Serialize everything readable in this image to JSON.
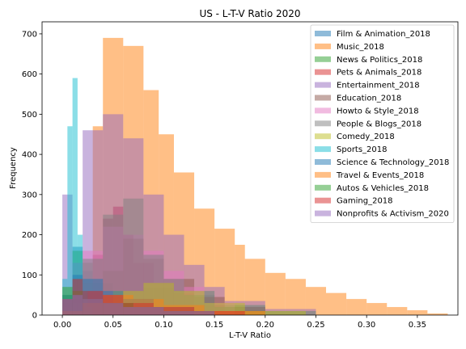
{
  "chart_data": {
    "type": "bar",
    "subtype": "overlaid-histogram",
    "title": "US - L-T-V Ratio 2020",
    "xlabel": "L-T-V Ratio",
    "ylabel": "Frequency",
    "xlim": [
      -0.02,
      0.39
    ],
    "ylim": [
      0,
      730
    ],
    "xticks": [
      0.0,
      0.05,
      0.1,
      0.15,
      0.2,
      0.25,
      0.3,
      0.35
    ],
    "xtick_labels": [
      "0.00",
      "0.05",
      "0.10",
      "0.15",
      "0.20",
      "0.25",
      "0.30",
      "0.35"
    ],
    "yticks": [
      0,
      100,
      200,
      300,
      400,
      500,
      600,
      700
    ],
    "ytick_labels": [
      "0",
      "100",
      "200",
      "300",
      "400",
      "500",
      "600",
      "700"
    ],
    "legend_position": "top-right",
    "bar_opacity": 0.5,
    "series": [
      {
        "name": "Film & Animation_2018",
        "color": "#1f77b4",
        "bins": [
          [
            0.0,
            0.01,
            40
          ],
          [
            0.01,
            0.02,
            170
          ],
          [
            0.02,
            0.03,
            110
          ],
          [
            0.03,
            0.05,
            60
          ],
          [
            0.05,
            0.08,
            30
          ],
          [
            0.08,
            0.12,
            15
          ]
        ]
      },
      {
        "name": "Music_2018",
        "color": "#ff7f0e",
        "bins": [
          [
            0.0,
            0.02,
            20
          ],
          [
            0.02,
            0.03,
            80
          ],
          [
            0.03,
            0.04,
            470
          ],
          [
            0.04,
            0.06,
            690
          ],
          [
            0.06,
            0.08,
            670
          ],
          [
            0.08,
            0.095,
            560
          ],
          [
            0.095,
            0.11,
            450
          ],
          [
            0.11,
            0.13,
            355
          ],
          [
            0.13,
            0.15,
            265
          ],
          [
            0.15,
            0.17,
            215
          ],
          [
            0.17,
            0.18,
            175
          ],
          [
            0.18,
            0.2,
            140
          ],
          [
            0.2,
            0.22,
            105
          ],
          [
            0.22,
            0.24,
            90
          ],
          [
            0.24,
            0.26,
            70
          ],
          [
            0.26,
            0.28,
            55
          ],
          [
            0.28,
            0.3,
            40
          ],
          [
            0.3,
            0.32,
            30
          ],
          [
            0.32,
            0.34,
            20
          ],
          [
            0.34,
            0.36,
            12
          ],
          [
            0.36,
            0.38,
            4
          ]
        ]
      },
      {
        "name": "News & Politics_2018",
        "color": "#2ca02c",
        "bins": [
          [
            0.0,
            0.01,
            50
          ],
          [
            0.01,
            0.02,
            160
          ],
          [
            0.02,
            0.03,
            130
          ],
          [
            0.03,
            0.05,
            80
          ],
          [
            0.05,
            0.08,
            60
          ],
          [
            0.08,
            0.11,
            70
          ],
          [
            0.11,
            0.15,
            60
          ],
          [
            0.15,
            0.2,
            25
          ],
          [
            0.2,
            0.25,
            10
          ]
        ]
      },
      {
        "name": "Pets & Animals_2018",
        "color": "#d62728",
        "bins": [
          [
            0.01,
            0.02,
            40
          ],
          [
            0.02,
            0.03,
            60
          ],
          [
            0.03,
            0.04,
            150
          ],
          [
            0.04,
            0.05,
            240
          ],
          [
            0.05,
            0.06,
            270
          ],
          [
            0.06,
            0.07,
            200
          ],
          [
            0.07,
            0.09,
            130
          ],
          [
            0.09,
            0.11,
            80
          ],
          [
            0.11,
            0.13,
            55
          ],
          [
            0.13,
            0.16,
            25
          ],
          [
            0.16,
            0.2,
            10
          ]
        ]
      },
      {
        "name": "Entertainment_2018",
        "color": "#9467bd",
        "bins": [
          [
            0.0,
            0.01,
            300
          ],
          [
            0.01,
            0.02,
            130
          ],
          [
            0.02,
            0.04,
            460
          ],
          [
            0.04,
            0.06,
            500
          ],
          [
            0.06,
            0.08,
            440
          ],
          [
            0.08,
            0.1,
            300
          ],
          [
            0.1,
            0.12,
            200
          ],
          [
            0.12,
            0.14,
            125
          ],
          [
            0.14,
            0.16,
            70
          ],
          [
            0.16,
            0.2,
            35
          ],
          [
            0.2,
            0.25,
            15
          ]
        ]
      },
      {
        "name": "Education_2018",
        "color": "#8c564b",
        "bins": [
          [
            0.0,
            0.02,
            20
          ],
          [
            0.02,
            0.04,
            60
          ],
          [
            0.04,
            0.06,
            110
          ],
          [
            0.06,
            0.08,
            190
          ],
          [
            0.08,
            0.1,
            140
          ],
          [
            0.1,
            0.13,
            90
          ],
          [
            0.13,
            0.16,
            45
          ],
          [
            0.16,
            0.2,
            20
          ]
        ]
      },
      {
        "name": "Howto & Style_2018",
        "color": "#e377c2",
        "bins": [
          [
            0.0,
            0.02,
            20
          ],
          [
            0.02,
            0.04,
            160
          ],
          [
            0.04,
            0.06,
            220
          ],
          [
            0.06,
            0.08,
            200
          ],
          [
            0.08,
            0.1,
            160
          ],
          [
            0.1,
            0.12,
            110
          ],
          [
            0.12,
            0.14,
            70
          ],
          [
            0.14,
            0.17,
            30
          ]
        ]
      },
      {
        "name": "People & Blogs_2018",
        "color": "#7f7f7f",
        "bins": [
          [
            0.0,
            0.02,
            30
          ],
          [
            0.02,
            0.04,
            140
          ],
          [
            0.04,
            0.06,
            250
          ],
          [
            0.06,
            0.08,
            290
          ],
          [
            0.08,
            0.1,
            150
          ],
          [
            0.1,
            0.12,
            90
          ],
          [
            0.12,
            0.15,
            50
          ],
          [
            0.15,
            0.2,
            20
          ]
        ]
      },
      {
        "name": "Comedy_2018",
        "color": "#bcbd22",
        "bins": [
          [
            0.0,
            0.02,
            10
          ],
          [
            0.02,
            0.05,
            30
          ],
          [
            0.05,
            0.08,
            60
          ],
          [
            0.08,
            0.11,
            80
          ],
          [
            0.11,
            0.14,
            60
          ],
          [
            0.14,
            0.18,
            30
          ],
          [
            0.18,
            0.24,
            10
          ]
        ]
      },
      {
        "name": "Sports_2018",
        "color": "#17becf",
        "bins": [
          [
            0.0,
            0.005,
            90
          ],
          [
            0.005,
            0.01,
            470
          ],
          [
            0.01,
            0.015,
            590
          ],
          [
            0.015,
            0.02,
            200
          ],
          [
            0.02,
            0.025,
            60
          ],
          [
            0.025,
            0.03,
            20
          ]
        ]
      },
      {
        "name": "Science & Technology_2018",
        "color": "#1f77b4",
        "bins": [
          [
            0.0,
            0.01,
            50
          ],
          [
            0.01,
            0.02,
            100
          ],
          [
            0.02,
            0.04,
            90
          ],
          [
            0.04,
            0.06,
            60
          ],
          [
            0.06,
            0.09,
            40
          ],
          [
            0.09,
            0.13,
            20
          ]
        ]
      },
      {
        "name": "Travel & Events_2018",
        "color": "#ff7f0e",
        "bins": [
          [
            0.0,
            0.02,
            10
          ],
          [
            0.02,
            0.04,
            30
          ],
          [
            0.04,
            0.07,
            50
          ],
          [
            0.07,
            0.1,
            40
          ],
          [
            0.1,
            0.14,
            25
          ],
          [
            0.14,
            0.2,
            10
          ]
        ]
      },
      {
        "name": "Autos & Vehicles_2018",
        "color": "#2ca02c",
        "bins": [
          [
            0.0,
            0.01,
            70
          ],
          [
            0.01,
            0.02,
            60
          ],
          [
            0.02,
            0.04,
            40
          ],
          [
            0.04,
            0.07,
            30
          ],
          [
            0.07,
            0.1,
            20
          ],
          [
            0.1,
            0.15,
            10
          ]
        ]
      },
      {
        "name": "Gaming_2018",
        "color": "#d62728",
        "bins": [
          [
            0.0,
            0.01,
            40
          ],
          [
            0.01,
            0.02,
            90
          ],
          [
            0.02,
            0.04,
            60
          ],
          [
            0.04,
            0.06,
            50
          ],
          [
            0.06,
            0.09,
            30
          ],
          [
            0.09,
            0.13,
            20
          ],
          [
            0.13,
            0.18,
            10
          ]
        ]
      },
      {
        "name": "Nonprofits & Activism_2020",
        "color": "#9467bd",
        "bins": [
          [
            0.0,
            0.01,
            40
          ],
          [
            0.01,
            0.02,
            50
          ],
          [
            0.02,
            0.04,
            40
          ],
          [
            0.04,
            0.06,
            30
          ],
          [
            0.06,
            0.1,
            20
          ],
          [
            0.1,
            0.15,
            10
          ]
        ]
      }
    ]
  }
}
